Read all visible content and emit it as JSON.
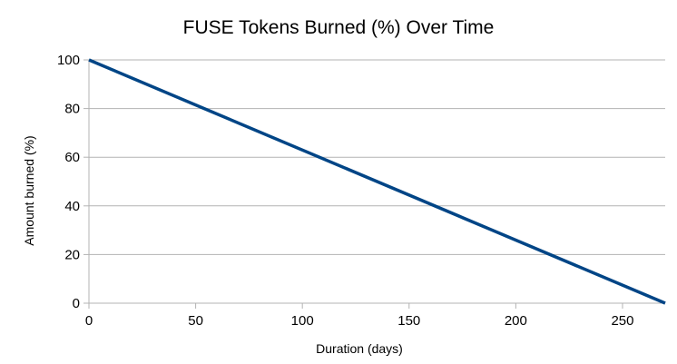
{
  "chart_data": {
    "type": "line",
    "title": "FUSE Tokens Burned (%) Over Time",
    "xlabel": "Duration (days)",
    "ylabel": "Amount burned (%)",
    "xlim": [
      0,
      270
    ],
    "ylim": [
      0,
      100
    ],
    "x_ticks": [
      0,
      50,
      100,
      150,
      200,
      250
    ],
    "y_ticks": [
      0,
      20,
      40,
      60,
      80,
      100
    ],
    "grid": "horizontal",
    "legend": "none",
    "series": [
      {
        "color": "#004586",
        "x": [
          0,
          270
        ],
        "y": [
          100,
          0
        ]
      }
    ]
  }
}
